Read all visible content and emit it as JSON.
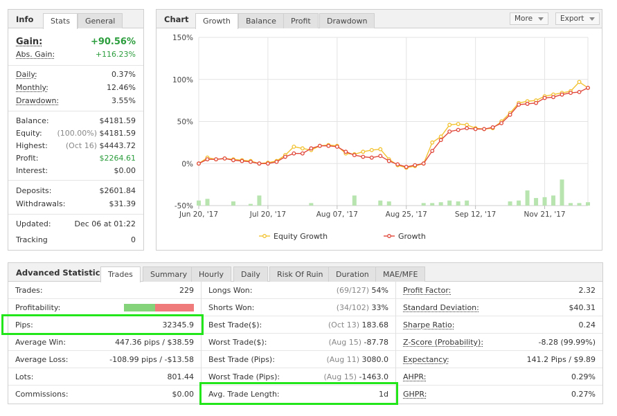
{
  "info": {
    "tabs": [
      {
        "label": "Info"
      },
      {
        "label": "Stats"
      },
      {
        "label": "General"
      }
    ],
    "gain_label": "Gain:",
    "gain_value": "+90.56%",
    "abs_gain_label": "Abs. Gain:",
    "abs_gain_value": "+116.23%",
    "daily_label": "Daily:",
    "daily_value": "0.37%",
    "monthly_label": "Monthly:",
    "monthly_value": "12.46%",
    "drawdown_label": "Drawdown:",
    "drawdown_value": "3.55%",
    "balance_label": "Balance:",
    "balance_value": "$4181.59",
    "equity_label": "Equity:",
    "equity_pct": "(100.00%)",
    "equity_value": "$4181.59",
    "highest_label": "Highest:",
    "highest_date": "(Oct 16)",
    "highest_value": "$4443.72",
    "profit_label": "Profit:",
    "profit_value": "$2264.61",
    "interest_label": "Interest:",
    "interest_value": "$0.00",
    "deposits_label": "Deposits:",
    "deposits_value": "$2601.84",
    "withdrawals_label": "Withdrawals:",
    "withdrawals_value": "$31.39",
    "updated_label": "Updated:",
    "updated_value": "Dec 06 at 01:22",
    "tracking_label": "Tracking",
    "tracking_value": "0"
  },
  "chart_panel": {
    "title": "Chart",
    "tabs": [
      {
        "label": "Growth"
      },
      {
        "label": "Balance"
      },
      {
        "label": "Profit"
      },
      {
        "label": "Drawdown"
      }
    ],
    "more_label": "More",
    "export_label": "Export"
  },
  "chart_data": {
    "type": "line",
    "ylim": [
      -50,
      150
    ],
    "y_ticks": [
      "150%",
      "100%",
      "50%",
      "0%",
      "-50%"
    ],
    "y_tick_values": [
      150,
      100,
      50,
      0,
      -50
    ],
    "x_ticks": [
      "Jun 20, '17",
      "Jul 20, '17",
      "Aug 07, '17",
      "Aug 25, '17",
      "Sep 12, '17",
      "Nov 21, '17"
    ],
    "x_tick_index": [
      0,
      8,
      16,
      24,
      32,
      40
    ],
    "grid": true,
    "legend_position": "bottom",
    "series": [
      {
        "name": "Equity Growth",
        "color": "#f2c230",
        "values": [
          0,
          7,
          5,
          6,
          5,
          4,
          3,
          0,
          1,
          3,
          10,
          20,
          18,
          16,
          21,
          22,
          21,
          12,
          11,
          14,
          16,
          17,
          5,
          -2,
          -5,
          -3,
          0,
          25,
          32,
          46,
          47,
          46,
          42,
          41,
          42,
          50,
          60,
          72,
          74,
          75,
          80,
          82,
          84,
          86,
          97,
          90
        ]
      },
      {
        "name": "Growth",
        "color": "#e0473a",
        "values": [
          0,
          5,
          5,
          6,
          4,
          3,
          2,
          0,
          0,
          2,
          8,
          12,
          12,
          18,
          21,
          21,
          20,
          14,
          10,
          8,
          7,
          9,
          3,
          -1,
          -4,
          -2,
          0,
          15,
          28,
          38,
          40,
          42,
          41,
          41,
          43,
          48,
          58,
          70,
          71,
          72,
          78,
          79,
          82,
          84,
          85,
          90
        ]
      }
    ],
    "histogram": [
      6,
      8,
      0,
      0,
      5,
      0,
      2,
      12,
      0,
      0,
      0,
      0,
      0,
      3,
      0,
      0,
      0,
      0,
      12,
      0,
      0,
      6,
      5,
      0,
      0,
      0,
      3,
      3,
      4,
      6,
      5,
      6,
      0,
      0,
      0,
      0,
      5,
      6,
      18,
      9,
      10,
      12,
      31,
      3,
      3,
      4
    ]
  },
  "advanced": {
    "title": "Advanced Statistics",
    "tabs": [
      {
        "label": "Trades"
      },
      {
        "label": "Summary"
      },
      {
        "label": "Hourly"
      },
      {
        "label": "Daily"
      },
      {
        "label": "Risk Of Ruin"
      },
      {
        "label": "Duration"
      },
      {
        "label": "MAE/MFE"
      }
    ],
    "profitability_win_pct": 45,
    "col1": [
      {
        "label": "Trades:",
        "value": "229"
      },
      {
        "label": "Profitability:",
        "value": ""
      },
      {
        "label": "Pips:",
        "value": "32345.9"
      },
      {
        "label": "Average Win:",
        "value": "447.36 pips / $38.59"
      },
      {
        "label": "Average Loss:",
        "value": "-108.99 pips / -$13.58"
      },
      {
        "label": "Lots:",
        "value": "801.44"
      },
      {
        "label": "Commissions:",
        "value": "$0.00"
      }
    ],
    "col2": [
      {
        "label": "Longs Won:",
        "note": "(69/127)",
        "value": "54%"
      },
      {
        "label": "Shorts Won:",
        "note": "(34/102)",
        "value": "33%"
      },
      {
        "label": "Best Trade($):",
        "note": "(Oct 13)",
        "value": "183.68"
      },
      {
        "label": "Worst Trade($):",
        "note": "(Aug 15)",
        "value": "-87.78"
      },
      {
        "label": "Best Trade (Pips):",
        "note": "(Aug 11)",
        "value": "3080.0"
      },
      {
        "label": "Worst Trade (Pips):",
        "note": "(Aug 15)",
        "value": "-1463.0"
      },
      {
        "label": "Avg. Trade Length:",
        "note": "",
        "value": "1d"
      }
    ],
    "col3": [
      {
        "label": "Profit Factor:",
        "value": "2.32"
      },
      {
        "label": "Standard Deviation:",
        "value": "$40.31"
      },
      {
        "label": "Sharpe Ratio:",
        "value": "0.24"
      },
      {
        "label": "Z-Score (Probability):",
        "value": "-8.28 (99.99%)"
      },
      {
        "label": "Expectancy:",
        "value": "141.2 Pips / $9.89"
      },
      {
        "label": "AHPR:",
        "value": "0.29%"
      },
      {
        "label": "GHPR:",
        "value": "0.27%"
      }
    ]
  }
}
